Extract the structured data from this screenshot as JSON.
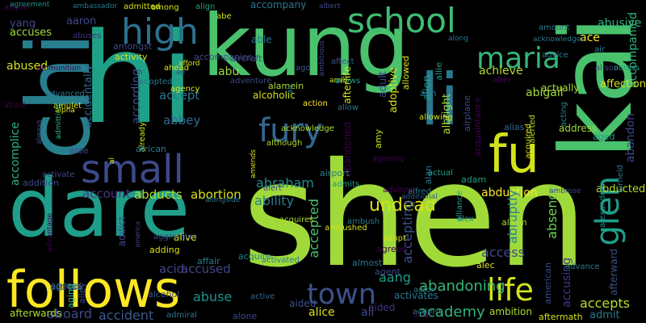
{
  "words": [
    {
      "text": "shen",
      "color": "#a0da39"
    },
    {
      "text": "hi",
      "color": "#1fa187"
    },
    {
      "text": "kung",
      "color": "#4ac16d"
    },
    {
      "text": "dare",
      "color": "#1f9e89"
    },
    {
      "text": "chi",
      "color": "#277f8e"
    },
    {
      "text": "li",
      "color": "#2a788e"
    },
    {
      "text": "kai",
      "color": "#4ac16d"
    },
    {
      "text": "follows",
      "color": "#fde725"
    },
    {
      "text": "school",
      "color": "#3fbc73"
    },
    {
      "text": "fu",
      "color": "#d2e21b"
    },
    {
      "text": "high",
      "color": "#2d708e"
    },
    {
      "text": "small",
      "color": "#3e4989"
    },
    {
      "text": "maria",
      "color": "#35b779"
    },
    {
      "text": "fury",
      "color": "#31688e"
    },
    {
      "text": "town",
      "color": "#3b528b"
    },
    {
      "text": "life",
      "color": "#d2e21b"
    },
    {
      "text": "glen",
      "color": "#1f9e89"
    },
    {
      "text": "undead",
      "color": "#d8e219"
    },
    {
      "text": "abyss",
      "color": "#440154"
    },
    {
      "text": "abuses",
      "color": "#46337e"
    },
    {
      "text": "yang",
      "color": "#414487"
    },
    {
      "text": "aaron",
      "color": "#3e4989"
    },
    {
      "text": "abe",
      "color": "#d2e21b"
    },
    {
      "text": "align",
      "color": "#1f9e89"
    },
    {
      "text": "accompany",
      "color": "#2a788e"
    },
    {
      "text": "abandon",
      "color": "#3e4989"
    },
    {
      "text": "abusive",
      "color": "#2fb47c"
    },
    {
      "text": "ace",
      "color": "#fde725"
    },
    {
      "text": "accompanied",
      "color": "#2fb47c"
    },
    {
      "text": "afterward",
      "color": "#3b528b"
    },
    {
      "text": "abducted",
      "color": "#b5de2b"
    },
    {
      "text": "abduction",
      "color": "#fde725"
    },
    {
      "text": "abandoning",
      "color": "#35b779"
    },
    {
      "text": "academy",
      "color": "#2fb47c"
    },
    {
      "text": "accepts",
      "color": "#b5de2b"
    },
    {
      "text": "accused",
      "color": "#3e4989"
    },
    {
      "text": "abuse",
      "color": "#21918c"
    },
    {
      "text": "aboard",
      "color": "#3e4989"
    },
    {
      "text": "accident",
      "color": "#38598c"
    },
    {
      "text": "abducts",
      "color": "#b5de2b"
    },
    {
      "text": "abortion",
      "color": "#d8e219"
    },
    {
      "text": "account",
      "color": "#443983"
    },
    {
      "text": "abraham",
      "color": "#228c8d"
    },
    {
      "text": "ability",
      "color": "#287c8e"
    },
    {
      "text": "accepted",
      "color": "#4ac16d"
    },
    {
      "text": "accepting",
      "color": "#3b528b"
    },
    {
      "text": "access",
      "color": "#3e4989"
    },
    {
      "text": "abruptly",
      "color": "#26828e"
    },
    {
      "text": "absence",
      "color": "#6ece58"
    },
    {
      "text": "accusing",
      "color": "#443983"
    },
    {
      "text": "abigail",
      "color": "#a0da39"
    },
    {
      "text": "achieve",
      "color": "#addc30"
    },
    {
      "text": "accuses",
      "color": "#a0da39"
    },
    {
      "text": "abused",
      "color": "#d2e21b"
    },
    {
      "text": "accidentally",
      "color": "#31688e"
    },
    {
      "text": "according",
      "color": "#3b528b"
    },
    {
      "text": "accomplice",
      "color": "#2fb47c"
    },
    {
      "text": "accept",
      "color": "#2a788e"
    },
    {
      "text": "abbey",
      "color": "#31688e"
    },
    {
      "text": "acid",
      "color": "#414487"
    },
    {
      "text": "aang",
      "color": "#1f9e89"
    },
    {
      "text": "abu",
      "color": "#a0da39"
    },
    {
      "text": "able",
      "color": "#2a788e"
    },
    {
      "text": "accompanies",
      "color": "#3e4989"
    },
    {
      "text": "abandoned",
      "color": "#440154"
    },
    {
      "text": "adam",
      "color": "#1f9e89"
    },
    {
      "text": "albright",
      "color": "#addc30"
    },
    {
      "text": "alan",
      "color": "#2a788e"
    },
    {
      "text": "advises",
      "color": "#440154"
    },
    {
      "text": "alien",
      "color": "#1fa187"
    },
    {
      "text": "admits",
      "color": "#1fa187"
    },
    {
      "text": "aided",
      "color": "#46337e"
    },
    {
      "text": "actual",
      "color": "#1f9e89"
    },
    {
      "text": "alfred",
      "color": "#2a788e"
    },
    {
      "text": "additional",
      "color": "#38598c"
    },
    {
      "text": "alex",
      "color": "#228c8d"
    },
    {
      "text": "alarm",
      "color": "#a0da39"
    },
    {
      "text": "alexander",
      "color": "#21918c"
    },
    {
      "text": "alliance",
      "color": "#1f9e89"
    },
    {
      "text": "airfield",
      "color": "#2a788e"
    },
    {
      "text": "ambrose",
      "color": "#3e4989"
    },
    {
      "text": "aged",
      "color": "#1f9e89"
    },
    {
      "text": "address",
      "color": "#a0da39"
    },
    {
      "text": "affection",
      "color": "#d8e219"
    },
    {
      "text": "actually",
      "color": "#addc30"
    },
    {
      "text": "alter",
      "color": "#440154"
    },
    {
      "text": "air",
      "color": "#26828e"
    },
    {
      "text": "alison",
      "color": "#3e4989"
    },
    {
      "text": "advice",
      "color": "#2a788e"
    },
    {
      "text": "across",
      "color": "#1f9e89"
    },
    {
      "text": "acting",
      "color": "#26828e"
    },
    {
      "text": "alerted",
      "color": "#addc30"
    },
    {
      "text": "acquired",
      "color": "#d2e21b"
    },
    {
      "text": "acquaintance",
      "color": "#440154"
    },
    {
      "text": "airplane",
      "color": "#3e4989"
    },
    {
      "text": "allie",
      "color": "#1f9e89"
    },
    {
      "text": "adoptive",
      "color": "#d8e219"
    },
    {
      "text": "adult",
      "color": "#3e4989"
    },
    {
      "text": "aim",
      "color": "#2a788e"
    },
    {
      "text": "allowing",
      "color": "#d2e21b"
    },
    {
      "text": "allowed",
      "color": "#d2e21b"
    },
    {
      "text": "afterlife",
      "color": "#d2e21b"
    },
    {
      "text": "affect",
      "color": "#38598c"
    },
    {
      "text": "amid",
      "color": "#d8e219"
    },
    {
      "text": "ago",
      "color": "#3b528b"
    },
    {
      "text": "alias",
      "color": "#31688e"
    },
    {
      "text": "allows",
      "color": "#1f9e89"
    },
    {
      "text": "action",
      "color": "#fde725"
    },
    {
      "text": "allow",
      "color": "#2a788e"
    },
    {
      "text": "affair",
      "color": "#2a788e"
    },
    {
      "text": "aircraft",
      "color": "#3e4989"
    },
    {
      "text": "alive",
      "color": "#d8e219"
    },
    {
      "text": "addict",
      "color": "#3e4989"
    },
    {
      "text": "aggressive",
      "color": "#3e4989"
    },
    {
      "text": "adding",
      "color": "#d8e219"
    },
    {
      "text": "acquire",
      "color": "#26828e"
    },
    {
      "text": "acquires",
      "color": "#addc30"
    },
    {
      "text": "agrees",
      "color": "#2a788e"
    },
    {
      "text": "actress",
      "color": "#3e4989"
    },
    {
      "text": "aging",
      "color": "#2fb47c"
    },
    {
      "text": "alley",
      "color": "#3e4989"
    },
    {
      "text": "alcohol",
      "color": "#3b528b"
    },
    {
      "text": "activated",
      "color": "#2a788e"
    },
    {
      "text": "almost",
      "color": "#2a788e"
    },
    {
      "text": "agreed",
      "color": "#440154"
    },
    {
      "text": "agent",
      "color": "#3e4989"
    },
    {
      "text": "adopt",
      "color": "#d2e21b"
    },
    {
      "text": "ambush",
      "color": "#2a788e"
    },
    {
      "text": "aided",
      "color": "#3b528b"
    },
    {
      "text": "alice",
      "color": "#d8e219"
    },
    {
      "text": "afterwards",
      "color": "#addc30"
    },
    {
      "text": "admiral",
      "color": "#2a788e"
    },
    {
      "text": "alone",
      "color": "#3e4989"
    },
    {
      "text": "active",
      "color": "#31688e"
    },
    {
      "text": "ali",
      "color": "#3e4989"
    },
    {
      "text": "activist",
      "color": "#2a788e"
    },
    {
      "text": "altar",
      "color": "#440154"
    },
    {
      "text": "ambition",
      "color": "#addc30"
    },
    {
      "text": "aftermath",
      "color": "#d2e21b"
    },
    {
      "text": "admit",
      "color": "#2a788e"
    },
    {
      "text": "activates",
      "color": "#2a788e"
    },
    {
      "text": "alec",
      "color": "#d8e219"
    },
    {
      "text": "actor",
      "color": "#2a788e"
    },
    {
      "text": "american",
      "color": "#3e4989"
    },
    {
      "text": "advance",
      "color": "#2a788e"
    },
    {
      "text": "agreement",
      "color": "#21918c"
    },
    {
      "text": "ambassador",
      "color": "#2a788e"
    },
    {
      "text": "admitted",
      "color": "#d2e21b"
    },
    {
      "text": "among",
      "color": "#d2e21b"
    },
    {
      "text": "albert",
      "color": "#3e4989"
    },
    {
      "text": "ambitious",
      "color": "#3e4989"
    },
    {
      "text": "ammunition",
      "color": "#440154"
    },
    {
      "text": "amongst",
      "color": "#3e4989"
    },
    {
      "text": "activity",
      "color": "#d2e21b"
    },
    {
      "text": "ahead",
      "color": "#d8e219"
    },
    {
      "text": "adopted",
      "color": "#2a788e"
    },
    {
      "text": "adventure",
      "color": "#3e4989"
    },
    {
      "text": "advanced",
      "color": "#2a788e"
    },
    {
      "text": "agency",
      "color": "#d8e219"
    },
    {
      "text": "alcoholic",
      "color": "#d2e21b"
    },
    {
      "text": "alamein",
      "color": "#addc30"
    },
    {
      "text": "afford",
      "color": "#d2e21b"
    },
    {
      "text": "ad",
      "color": "#3e4989"
    },
    {
      "text": "afraid",
      "color": "#440154"
    },
    {
      "text": "alpha",
      "color": "#d8e219"
    },
    {
      "text": "always",
      "color": "#3e4989"
    },
    {
      "text": "amulet",
      "color": "#d8e219"
    },
    {
      "text": "admitting",
      "color": "#2fb47c"
    },
    {
      "text": "already",
      "color": "#d2e21b"
    },
    {
      "text": "aide",
      "color": "#3e4989"
    },
    {
      "text": "african",
      "color": "#2a788e"
    },
    {
      "text": "activate",
      "color": "#3e4989"
    },
    {
      "text": "addition",
      "color": "#3e4989"
    },
    {
      "text": "al",
      "color": "#d2e21b"
    },
    {
      "text": "alongside",
      "color": "#2a788e"
    },
    {
      "text": "amends",
      "color": "#d8e219"
    },
    {
      "text": "alert",
      "color": "#3e4989"
    },
    {
      "text": "although",
      "color": "#addc30"
    },
    {
      "text": "acknowledge",
      "color": "#addc30"
    },
    {
      "text": "amy",
      "color": "#d2e21b"
    },
    {
      "text": "airport",
      "color": "#2a788e"
    },
    {
      "text": "agreeing",
      "color": "#440154"
    },
    {
      "text": "ambushed",
      "color": "#d2e21b"
    },
    {
      "text": "advantage",
      "color": "#440154"
    },
    {
      "text": "ah",
      "color": "#2a788e"
    },
    {
      "text": "amount",
      "color": "#2a788e"
    },
    {
      "text": "acknowledges",
      "color": "#2a788e"
    },
    {
      "text": "along",
      "color": "#2a788e"
    },
    {
      "text": "america",
      "color": "#3e4989"
    },
    {
      "text": "amnesia",
      "color": "#3e4989"
    }
  ]
}
